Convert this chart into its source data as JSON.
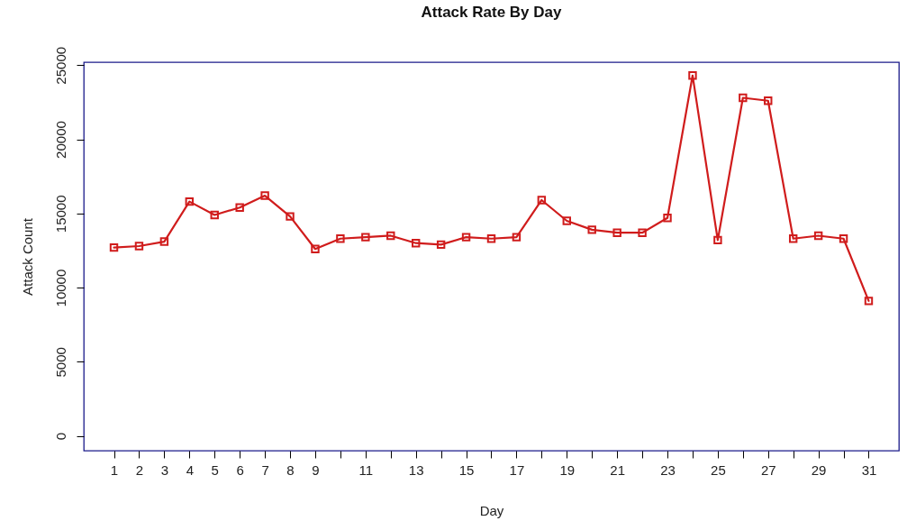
{
  "chart_data": {
    "type": "line",
    "title": "Attack Rate By Day",
    "xlabel": "Day",
    "ylabel": "Attack Count",
    "x": [
      1,
      2,
      3,
      4,
      5,
      6,
      7,
      8,
      9,
      10,
      11,
      12,
      13,
      14,
      15,
      16,
      17,
      18,
      19,
      20,
      21,
      22,
      23,
      24,
      25,
      26,
      27,
      28,
      29,
      30,
      31
    ],
    "series": [
      {
        "color": "#d01c1c",
        "values": [
          12700,
          12800,
          13100,
          15800,
          14900,
          15400,
          16200,
          14800,
          12600,
          13300,
          13400,
          13500,
          13000,
          12900,
          13400,
          13300,
          13400,
          15900,
          14500,
          13900,
          13700,
          13700,
          14700,
          24300,
          13200,
          22800,
          22600,
          13300,
          13500,
          13300,
          9100
        ]
      }
    ],
    "xlim": [
      -0.2,
      32.2
    ],
    "ylim": [
      -1000,
      25200
    ],
    "xticks": [
      1,
      2,
      3,
      4,
      5,
      6,
      7,
      8,
      9,
      {
        "value": 10,
        "label": null
      },
      11,
      {
        "value": 12,
        "label": null
      },
      13,
      {
        "value": 14,
        "label": null
      },
      15,
      {
        "value": 16,
        "label": null
      },
      17,
      {
        "value": 18,
        "label": null
      },
      19,
      {
        "value": 20,
        "label": null
      },
      21,
      {
        "value": 22,
        "label": null
      },
      23,
      {
        "value": 24,
        "label": null
      },
      25,
      {
        "value": 26,
        "label": null
      },
      27,
      {
        "value": 28,
        "label": null
      },
      29,
      {
        "value": 30,
        "label": null
      },
      31
    ],
    "yticks": [
      0,
      5000,
      10000,
      15000,
      20000,
      25000
    ],
    "grid": false,
    "marker": "square",
    "line_style": "solid"
  }
}
